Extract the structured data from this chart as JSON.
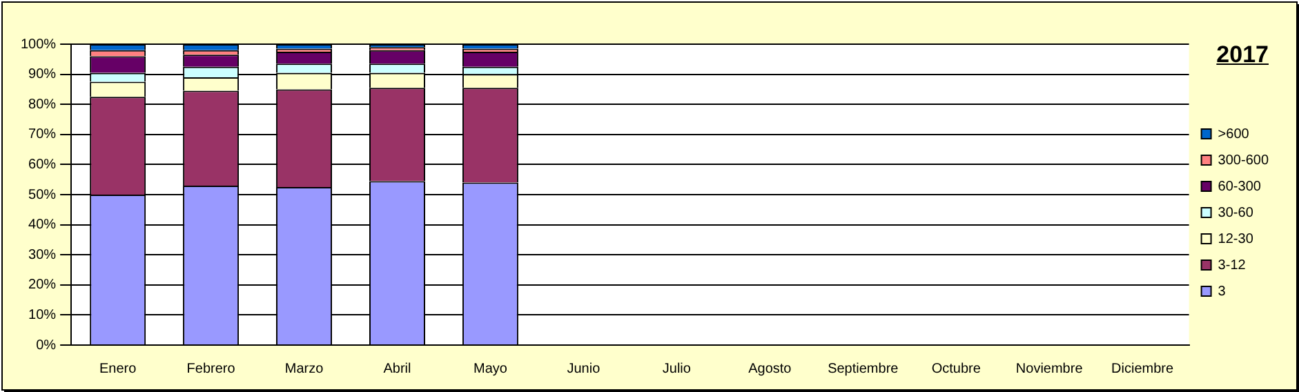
{
  "chart_data": {
    "type": "bar",
    "title": "2017",
    "stacked": true,
    "legend": "right",
    "grid": "y",
    "categories": [
      "Enero",
      "Febrero",
      "Marzo",
      "Abril",
      "Mayo",
      "Junio",
      "Julio",
      "Agosto",
      "Septiembre",
      "Octubre",
      "Noviembre",
      "Diciembre"
    ],
    "ylim": [
      0,
      100
    ],
    "yticks": [
      {
        "value": 0,
        "label": "0%"
      },
      {
        "value": 10,
        "label": "10%"
      },
      {
        "value": 20,
        "label": "20%"
      },
      {
        "value": 30,
        "label": "30%"
      },
      {
        "value": 40,
        "label": "40%"
      },
      {
        "value": 50,
        "label": "50%"
      },
      {
        "value": 60,
        "label": "60%"
      },
      {
        "value": 70,
        "label": "70%"
      },
      {
        "value": 80,
        "label": "80%"
      },
      {
        "value": 90,
        "label": "90%"
      },
      {
        "value": 100,
        "label": "100%"
      }
    ],
    "series": [
      {
        "name": "3",
        "color": "#9999ff",
        "values": [
          50,
          53,
          52.5,
          54.5,
          54,
          0,
          0,
          0,
          0,
          0,
          0,
          0
        ]
      },
      {
        "name": "3-12",
        "color": "#993366",
        "values": [
          32.5,
          31.5,
          32.5,
          31,
          31.5,
          0,
          0,
          0,
          0,
          0,
          0,
          0
        ]
      },
      {
        "name": "12-30",
        "color": "#ffffcc",
        "values": [
          5,
          4.5,
          5.5,
          5,
          4.5,
          0,
          0,
          0,
          0,
          0,
          0,
          0
        ]
      },
      {
        "name": "30-60",
        "color": "#ccffff",
        "values": [
          3,
          3.5,
          3,
          3,
          2.5,
          0,
          0,
          0,
          0,
          0,
          0,
          0
        ]
      },
      {
        "name": "60-300",
        "color": "#660066",
        "values": [
          5.5,
          4,
          4,
          4.5,
          5,
          0,
          0,
          0,
          0,
          0,
          0,
          0
        ]
      },
      {
        "name": "300-600",
        "color": "#ff8080",
        "values": [
          2,
          1.5,
          1,
          1,
          1,
          0,
          0,
          0,
          0,
          0,
          0,
          0
        ]
      },
      {
        "name": ">600",
        "color": "#0066cc",
        "values": [
          2,
          2,
          1.5,
          1,
          1.5,
          0,
          0,
          0,
          0,
          0,
          0,
          0
        ]
      }
    ]
  }
}
